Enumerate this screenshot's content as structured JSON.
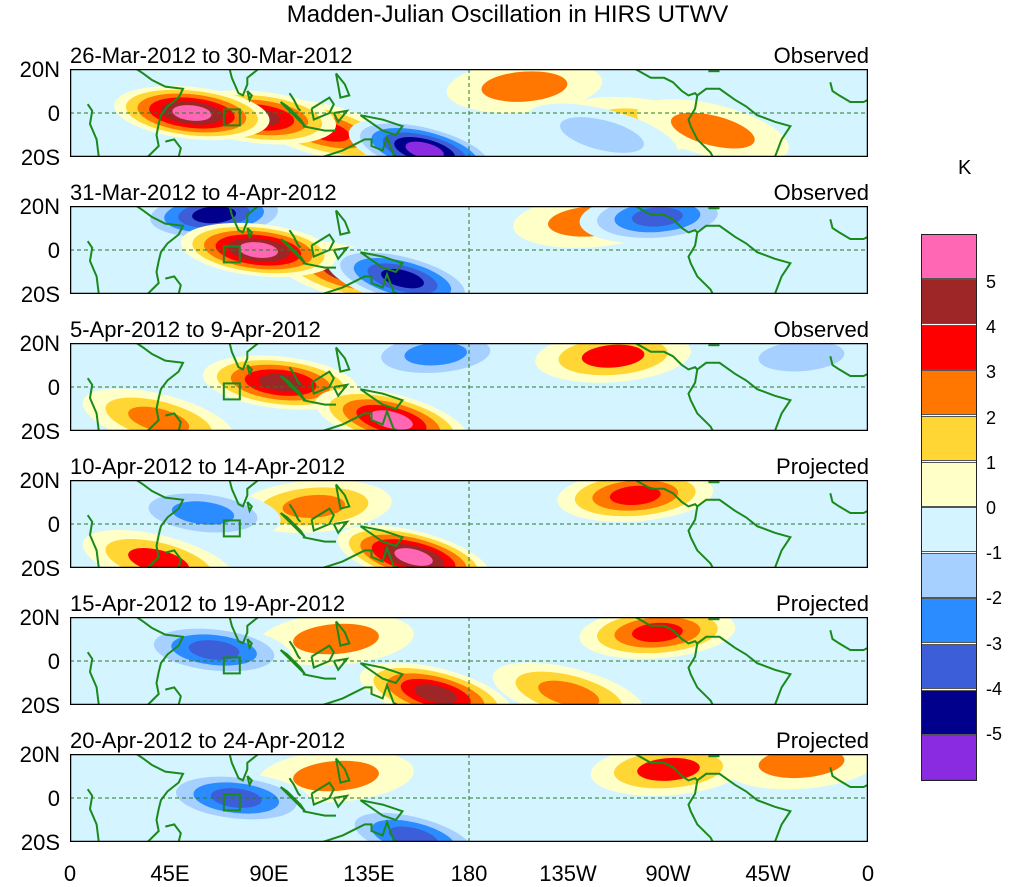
{
  "title": "Madden-Julian Oscillation in HIRS UTWV",
  "x_labels": [
    "0",
    "45E",
    "90E",
    "135E",
    "180",
    "135W",
    "90W",
    "45W",
    "0"
  ],
  "y_labels": [
    "20N",
    "0",
    "20S"
  ],
  "panels": [
    {
      "date": "26-Mar-2012 to 30-Mar-2012",
      "tag": "Observed"
    },
    {
      "date": "31-Mar-2012 to 4-Apr-2012",
      "tag": "Observed"
    },
    {
      "date": "5-Apr-2012 to 9-Apr-2012",
      "tag": "Observed"
    },
    {
      "date": "10-Apr-2012 to 14-Apr-2012",
      "tag": "Projected"
    },
    {
      "date": "15-Apr-2012 to 19-Apr-2012",
      "tag": "Projected"
    },
    {
      "date": "20-Apr-2012 to 24-Apr-2012",
      "tag": "Projected"
    }
  ],
  "legend": {
    "unit": "K",
    "labels": [
      "5",
      "4",
      "3",
      "2",
      "1",
      "0",
      "-1",
      "-2",
      "-3",
      "-4",
      "-5"
    ],
    "colors": [
      "#ff66b3",
      "#9e2626",
      "#ff0000",
      "#ff7700",
      "#ffd633",
      "#ffffc8",
      "#d4f4ff",
      "#a6d0ff",
      "#2b8cff",
      "#3c5ed9",
      "#00008c",
      "#8a2be2"
    ]
  },
  "map_colors": {
    "coast": "#1a8a1a",
    "grid": "#2a7a2a"
  },
  "chart_data": {
    "type": "heatmap",
    "title": "Madden-Julian Oscillation in HIRS UTWV",
    "variable": "upper tropospheric water vapor anomaly",
    "unit": "K",
    "x_range_deg": [
      0,
      360
    ],
    "y_range_deg": [
      -20,
      20
    ],
    "levels": [
      -5,
      -4,
      -3,
      -2,
      -1,
      0,
      1,
      2,
      3,
      4,
      5
    ],
    "panels": [
      {
        "period": "26-Mar-2012 to 30-Mar-2012",
        "kind": "Observed",
        "features": [
          {
            "lon": 55,
            "lat": 0,
            "value": 5.5
          },
          {
            "lon": 85,
            "lat": -2,
            "value": 4.2
          },
          {
            "lon": 115,
            "lat": -8,
            "value": 3.5
          },
          {
            "lon": 160,
            "lat": -17,
            "value": -5.5
          },
          {
            "lon": 205,
            "lat": 12,
            "value": 2
          },
          {
            "lon": 255,
            "lat": -5,
            "value": 1.5
          },
          {
            "lon": 290,
            "lat": -8,
            "value": 2
          },
          {
            "lon": 240,
            "lat": -10,
            "value": -2
          }
        ]
      },
      {
        "period": "31-Mar-2012 to 4-Apr-2012",
        "kind": "Observed",
        "features": [
          {
            "lon": 85,
            "lat": 0,
            "value": 5.2
          },
          {
            "lon": 125,
            "lat": -10,
            "value": 4
          },
          {
            "lon": 150,
            "lat": -13,
            "value": -4.5
          },
          {
            "lon": 65,
            "lat": 16,
            "value": -4.5
          },
          {
            "lon": 235,
            "lat": 13,
            "value": 2
          },
          {
            "lon": 265,
            "lat": 15,
            "value": -3.5
          }
        ]
      },
      {
        "period": "5-Apr-2012 to 9-Apr-2012",
        "kind": "Observed",
        "features": [
          {
            "lon": 95,
            "lat": 2,
            "value": 4.5
          },
          {
            "lon": 145,
            "lat": -15,
            "value": 5
          },
          {
            "lon": 245,
            "lat": 14,
            "value": 3
          },
          {
            "lon": 40,
            "lat": -15,
            "value": 2.5
          },
          {
            "lon": 165,
            "lat": 15,
            "value": -3
          },
          {
            "lon": 330,
            "lat": 14,
            "value": -2
          }
        ]
      },
      {
        "period": "10-Apr-2012 to 14-Apr-2012",
        "kind": "Projected",
        "features": [
          {
            "lon": 155,
            "lat": -15,
            "value": 5.5
          },
          {
            "lon": 255,
            "lat": 13,
            "value": 3.5
          },
          {
            "lon": 110,
            "lat": 8,
            "value": 2.5
          },
          {
            "lon": 40,
            "lat": -17,
            "value": 3
          },
          {
            "lon": 60,
            "lat": 5,
            "value": -3
          }
        ]
      },
      {
        "period": "15-Apr-2012 to 19-Apr-2012",
        "kind": "Projected",
        "features": [
          {
            "lon": 165,
            "lat": -15,
            "value": 4.5
          },
          {
            "lon": 265,
            "lat": 13,
            "value": 3.5
          },
          {
            "lon": 65,
            "lat": 5,
            "value": -3.5
          },
          {
            "lon": 225,
            "lat": -15,
            "value": 2.5
          },
          {
            "lon": 120,
            "lat": 10,
            "value": 2
          }
        ]
      },
      {
        "period": "20-Apr-2012 to 24-Apr-2012",
        "kind": "Projected",
        "features": [
          {
            "lon": 270,
            "lat": 13,
            "value": 3
          },
          {
            "lon": 75,
            "lat": 0,
            "value": -3.5
          },
          {
            "lon": 155,
            "lat": -18,
            "value": -4
          },
          {
            "lon": 330,
            "lat": 16,
            "value": 2
          },
          {
            "lon": 120,
            "lat": 10,
            "value": 2
          }
        ]
      }
    ]
  }
}
